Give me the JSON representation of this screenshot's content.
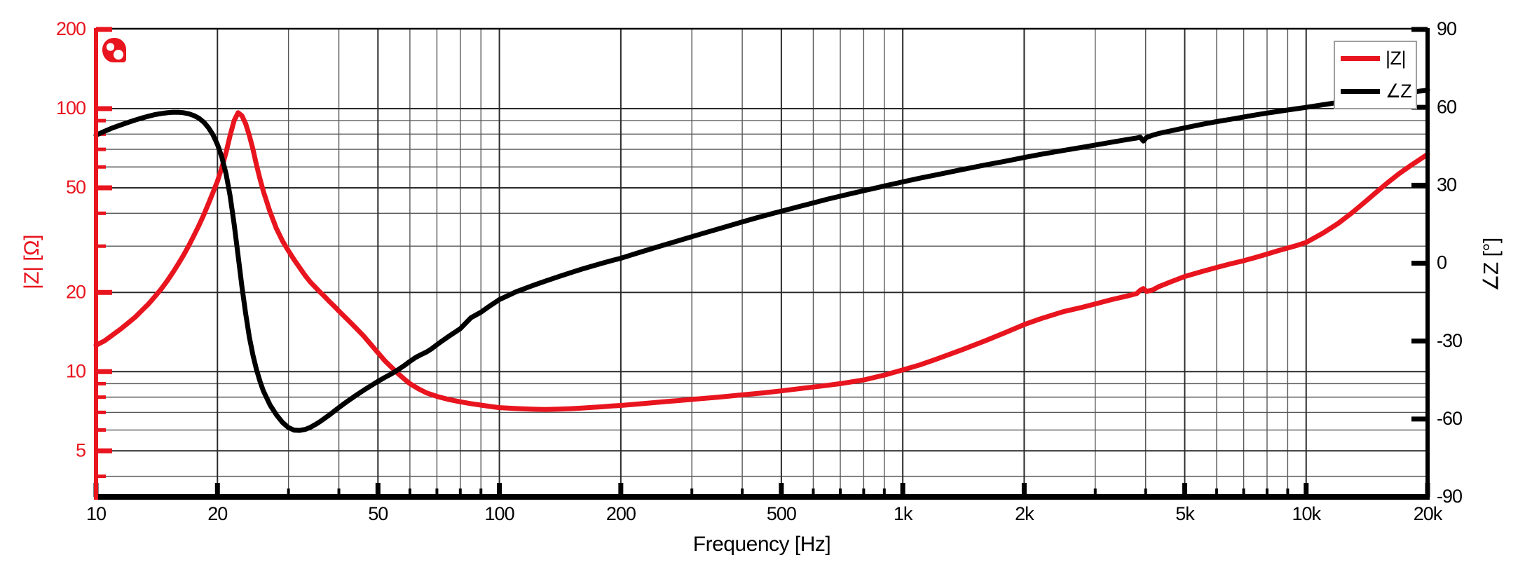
{
  "chart_data": {
    "type": "line",
    "title": "",
    "xlabel": "Frequency [Hz]",
    "ylabel_left": "|Z| [Ω]",
    "ylabel_right": "∠Z [°]",
    "x_scale": "log",
    "xlim": [
      10,
      20000
    ],
    "y_left_scale": "log",
    "ylim_left": [
      3.34,
      200
    ],
    "y_right_scale": "linear",
    "ylim_right": [
      -90,
      90
    ],
    "grid": true,
    "legend_position": "top-right",
    "x_major_ticks": [
      {
        "v": 10,
        "label": "10"
      },
      {
        "v": 20,
        "label": "20"
      },
      {
        "v": 50,
        "label": "50"
      },
      {
        "v": 100,
        "label": "100"
      },
      {
        "v": 200,
        "label": "200"
      },
      {
        "v": 500,
        "label": "500"
      },
      {
        "v": 1000,
        "label": "1k"
      },
      {
        "v": 2000,
        "label": "2k"
      },
      {
        "v": 5000,
        "label": "5k"
      },
      {
        "v": 10000,
        "label": "10k"
      },
      {
        "v": 20000,
        "label": "20k"
      }
    ],
    "x_minor_ticks": [
      30,
      40,
      60,
      70,
      80,
      90,
      300,
      400,
      600,
      700,
      800,
      900,
      3000,
      4000,
      6000,
      7000,
      8000,
      9000
    ],
    "y_left_major_ticks": [
      {
        "v": 200,
        "label": "200"
      },
      {
        "v": 100,
        "label": "100"
      },
      {
        "v": 50,
        "label": "50"
      },
      {
        "v": 20,
        "label": "20"
      },
      {
        "v": 10,
        "label": "10"
      },
      {
        "v": 5,
        "label": "5"
      }
    ],
    "y_left_minor_ticks": [
      90,
      80,
      70,
      60,
      40,
      30,
      9,
      8,
      7,
      6,
      4
    ],
    "y_right_ticks": [
      {
        "v": 90,
        "label": "90"
      },
      {
        "v": 60,
        "label": "60"
      },
      {
        "v": 30,
        "label": "30"
      },
      {
        "v": 0,
        "label": "0"
      },
      {
        "v": -30,
        "label": "-30"
      },
      {
        "v": -60,
        "label": "-60"
      },
      {
        "v": -90,
        "label": "-90"
      }
    ],
    "legend": {
      "entries": [
        {
          "label": "|Z|",
          "color": "#e8141e"
        },
        {
          "label": "∠Z",
          "color": "#000000"
        }
      ]
    },
    "series": [
      {
        "name": "|Z|",
        "axis": "left",
        "unit": "ohm",
        "color": "#e8141e",
        "points": [
          [
            10,
            12.6
          ],
          [
            10.5,
            13.1
          ],
          [
            11,
            13.8
          ],
          [
            11.5,
            14.5
          ],
          [
            12,
            15.3
          ],
          [
            12.5,
            16.1
          ],
          [
            13,
            17.1
          ],
          [
            13.5,
            18.1
          ],
          [
            14,
            19.3
          ],
          [
            14.5,
            20.6
          ],
          [
            15,
            22.1
          ],
          [
            15.5,
            23.8
          ],
          [
            16,
            25.7
          ],
          [
            16.5,
            27.8
          ],
          [
            17,
            30.2
          ],
          [
            17.5,
            33
          ],
          [
            18,
            36
          ],
          [
            18.5,
            39.5
          ],
          [
            19,
            43.5
          ],
          [
            19.5,
            48
          ],
          [
            20,
            53
          ],
          [
            20.5,
            59.5
          ],
          [
            21,
            68
          ],
          [
            21.5,
            79
          ],
          [
            22,
            90
          ],
          [
            22.5,
            96.5
          ],
          [
            23,
            94
          ],
          [
            23.5,
            87.5
          ],
          [
            24,
            79
          ],
          [
            24.5,
            70
          ],
          [
            25,
            61
          ],
          [
            25.5,
            54
          ],
          [
            26,
            48.5
          ],
          [
            27,
            40.5
          ],
          [
            28,
            35
          ],
          [
            29,
            31.4
          ],
          [
            30,
            28.8
          ],
          [
            31,
            26.6
          ],
          [
            32,
            24.8
          ],
          [
            33,
            23.2
          ],
          [
            34,
            21.9
          ],
          [
            35,
            20.9
          ],
          [
            36,
            20
          ],
          [
            37,
            19.2
          ],
          [
            38,
            18.4
          ],
          [
            39,
            17.7
          ],
          [
            40,
            17
          ],
          [
            42,
            15.8
          ],
          [
            44,
            14.7
          ],
          [
            46,
            13.7
          ],
          [
            48,
            12.7
          ],
          [
            50,
            11.8
          ],
          [
            52,
            11
          ],
          [
            54,
            10.4
          ],
          [
            56,
            9.85
          ],
          [
            58,
            9.4
          ],
          [
            60,
            9
          ],
          [
            63,
            8.6
          ],
          [
            66,
            8.3
          ],
          [
            70,
            8.05
          ],
          [
            75,
            7.83
          ],
          [
            80,
            7.68
          ],
          [
            85,
            7.56
          ],
          [
            90,
            7.46
          ],
          [
            95,
            7.37
          ],
          [
            100,
            7.3
          ],
          [
            110,
            7.24
          ],
          [
            120,
            7.2
          ],
          [
            130,
            7.18
          ],
          [
            140,
            7.2
          ],
          [
            150,
            7.23
          ],
          [
            160,
            7.27
          ],
          [
            170,
            7.31
          ],
          [
            180,
            7.35
          ],
          [
            190,
            7.4
          ],
          [
            200,
            7.44
          ],
          [
            220,
            7.53
          ],
          [
            240,
            7.62
          ],
          [
            260,
            7.7
          ],
          [
            280,
            7.77
          ],
          [
            300,
            7.84
          ],
          [
            350,
            8
          ],
          [
            400,
            8.16
          ],
          [
            450,
            8.3
          ],
          [
            500,
            8.45
          ],
          [
            550,
            8.6
          ],
          [
            600,
            8.74
          ],
          [
            650,
            8.87
          ],
          [
            700,
            9
          ],
          [
            800,
            9.3
          ],
          [
            900,
            9.7
          ],
          [
            1000,
            10.15
          ],
          [
            1100,
            10.6
          ],
          [
            1200,
            11.1
          ],
          [
            1400,
            12.1
          ],
          [
            1600,
            13.1
          ],
          [
            1800,
            14.1
          ],
          [
            2000,
            15.1
          ],
          [
            2200,
            15.9
          ],
          [
            2500,
            16.9
          ],
          [
            2800,
            17.6
          ],
          [
            3000,
            18.1
          ],
          [
            3300,
            18.8
          ],
          [
            3600,
            19.4
          ],
          [
            3800,
            19.8
          ],
          [
            3880,
            20.4
          ],
          [
            3950,
            20.7
          ],
          [
            4020,
            20.2
          ],
          [
            4150,
            20.4
          ],
          [
            4300,
            21
          ],
          [
            4600,
            21.9
          ],
          [
            5000,
            23
          ],
          [
            5500,
            24
          ],
          [
            6000,
            24.9
          ],
          [
            6500,
            25.7
          ],
          [
            7000,
            26.4
          ],
          [
            7500,
            27.2
          ],
          [
            8000,
            28
          ],
          [
            8500,
            28.8
          ],
          [
            9000,
            29.5
          ],
          [
            9500,
            30.2
          ],
          [
            10000,
            31
          ],
          [
            11000,
            33.6
          ],
          [
            12000,
            36.6
          ],
          [
            13000,
            40.2
          ],
          [
            14000,
            44.2
          ],
          [
            15000,
            48.4
          ],
          [
            16000,
            52.6
          ],
          [
            17000,
            56.6
          ],
          [
            18000,
            60.2
          ],
          [
            19000,
            63.6
          ],
          [
            20000,
            67
          ]
        ]
      },
      {
        "name": "∠Z",
        "axis": "right",
        "unit": "deg",
        "color": "#000000",
        "points": [
          [
            10,
            49.3
          ],
          [
            10.5,
            50.8
          ],
          [
            11,
            52.1
          ],
          [
            11.5,
            53.2
          ],
          [
            12,
            54.2
          ],
          [
            12.5,
            55.1
          ],
          [
            13,
            55.9
          ],
          [
            13.5,
            56.6
          ],
          [
            14,
            57.2
          ],
          [
            14.5,
            57.6
          ],
          [
            15,
            57.9
          ],
          [
            15.5,
            58.1
          ],
          [
            16,
            58.1
          ],
          [
            16.5,
            57.9
          ],
          [
            17,
            57.5
          ],
          [
            17.5,
            56.8
          ],
          [
            18,
            55.8
          ],
          [
            18.5,
            54.3
          ],
          [
            19,
            52.2
          ],
          [
            19.5,
            49.4
          ],
          [
            20,
            45.7
          ],
          [
            20.5,
            40.9
          ],
          [
            21,
            34.5
          ],
          [
            21.5,
            26
          ],
          [
            22,
            15
          ],
          [
            22.5,
            3
          ],
          [
            23,
            -9
          ],
          [
            23.5,
            -19.5
          ],
          [
            24,
            -28.5
          ],
          [
            24.5,
            -35.5
          ],
          [
            25,
            -41
          ],
          [
            25.5,
            -45.5
          ],
          [
            26,
            -49.2
          ],
          [
            27,
            -54.6
          ],
          [
            28,
            -58.4
          ],
          [
            29,
            -61.3
          ],
          [
            30,
            -63.3
          ],
          [
            31,
            -64.3
          ],
          [
            32,
            -64.4
          ],
          [
            33,
            -64
          ],
          [
            34,
            -63.2
          ],
          [
            35,
            -62.1
          ],
          [
            36,
            -60.9
          ],
          [
            38,
            -58.3
          ],
          [
            40,
            -55.6
          ],
          [
            42,
            -53.2
          ],
          [
            44,
            -51
          ],
          [
            46,
            -49
          ],
          [
            48,
            -47.2
          ],
          [
            50,
            -45.5
          ],
          [
            52,
            -44
          ],
          [
            54,
            -42.6
          ],
          [
            56,
            -41.1
          ],
          [
            58,
            -39.5
          ],
          [
            60,
            -37.8
          ],
          [
            62,
            -36.3
          ],
          [
            64,
            -35.2
          ],
          [
            66,
            -34.2
          ],
          [
            68,
            -32.9
          ],
          [
            70,
            -31.4
          ],
          [
            72,
            -30
          ],
          [
            75,
            -28.1
          ],
          [
            80,
            -25.2
          ],
          [
            85,
            -21
          ],
          [
            90,
            -18.9
          ],
          [
            95,
            -16.3
          ],
          [
            100,
            -14
          ],
          [
            110,
            -11
          ],
          [
            120,
            -8.8
          ],
          [
            130,
            -6.9
          ],
          [
            140,
            -5.2
          ],
          [
            150,
            -3.7
          ],
          [
            160,
            -2.3
          ],
          [
            170,
            -1.1
          ],
          [
            180,
            0
          ],
          [
            190,
            1
          ],
          [
            200,
            1.9
          ],
          [
            220,
            3.9
          ],
          [
            240,
            5.7
          ],
          [
            260,
            7.3
          ],
          [
            280,
            8.8
          ],
          [
            300,
            10.2
          ],
          [
            330,
            12.1
          ],
          [
            360,
            13.8
          ],
          [
            400,
            15.9
          ],
          [
            440,
            17.7
          ],
          [
            480,
            19.3
          ],
          [
            500,
            20
          ],
          [
            550,
            21.7
          ],
          [
            600,
            23.2
          ],
          [
            650,
            24.6
          ],
          [
            700,
            25.8
          ],
          [
            750,
            26.9
          ],
          [
            800,
            27.9
          ],
          [
            900,
            29.7
          ],
          [
            1000,
            31.3
          ],
          [
            1100,
            32.7
          ],
          [
            1200,
            33.9
          ],
          [
            1400,
            36
          ],
          [
            1600,
            37.8
          ],
          [
            1800,
            39.3
          ],
          [
            2000,
            40.7
          ],
          [
            2200,
            41.9
          ],
          [
            2500,
            43.4
          ],
          [
            2800,
            44.7
          ],
          [
            3000,
            45.5
          ],
          [
            3300,
            46.6
          ],
          [
            3600,
            47.6
          ],
          [
            3800,
            48.2
          ],
          [
            3880,
            48.5
          ],
          [
            3950,
            47
          ],
          [
            4020,
            48.4
          ],
          [
            4150,
            49.2
          ],
          [
            4300,
            49.9
          ],
          [
            4600,
            50.9
          ],
          [
            5000,
            52.1
          ],
          [
            5500,
            53.4
          ],
          [
            6000,
            54.5
          ],
          [
            6500,
            55.4
          ],
          [
            7000,
            56.3
          ],
          [
            7500,
            57.1
          ],
          [
            8000,
            57.8
          ],
          [
            8500,
            58.4
          ],
          [
            9000,
            59
          ],
          [
            9500,
            59.5
          ],
          [
            10000,
            60
          ],
          [
            11000,
            61
          ],
          [
            12000,
            61.9
          ],
          [
            13000,
            62.7
          ],
          [
            14000,
            63.4
          ],
          [
            15000,
            64.1
          ],
          [
            16000,
            64.7
          ],
          [
            17000,
            65.2
          ],
          [
            18000,
            65.7
          ],
          [
            19000,
            66.2
          ],
          [
            20000,
            66.6
          ]
        ]
      }
    ]
  },
  "colors": {
    "impedance": "#e8141e",
    "phase": "#000000",
    "grid_major": "#2a2a2a",
    "grid_minor": "#565656",
    "legend_border": "#9e9e9e",
    "background": "#ffffff"
  },
  "logo": {
    "icon": "red-driver-blob",
    "dot_count": 2
  }
}
